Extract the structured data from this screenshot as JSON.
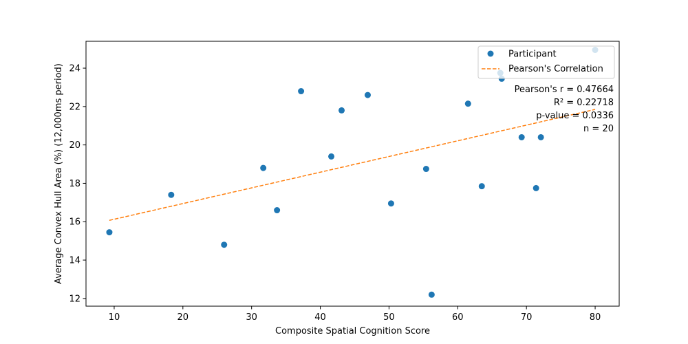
{
  "chart_data": {
    "type": "scatter",
    "title": "",
    "xlabel": "Composite Spatial Cognition Score",
    "ylabel": "Average Convex Hull Area (%) (12,000ms period)",
    "xlim": [
      5.9,
      83.5
    ],
    "ylim": [
      11.6,
      25.4
    ],
    "x_ticks": [
      10,
      20,
      30,
      40,
      50,
      60,
      70,
      80
    ],
    "y_ticks": [
      12,
      14,
      16,
      18,
      20,
      22,
      24
    ],
    "grid": false,
    "legend_position": "top-right",
    "series": [
      {
        "name": "Participant",
        "kind": "scatter",
        "color": "#1f77b4",
        "points": [
          [
            9.3,
            15.45
          ],
          [
            18.3,
            17.4
          ],
          [
            26.0,
            14.8
          ],
          [
            31.7,
            18.8
          ],
          [
            33.7,
            16.6
          ],
          [
            37.2,
            22.8
          ],
          [
            41.6,
            19.4
          ],
          [
            43.1,
            21.8
          ],
          [
            46.9,
            22.6
          ],
          [
            50.3,
            16.95
          ],
          [
            55.4,
            18.75
          ],
          [
            56.2,
            12.2
          ],
          [
            61.5,
            22.15
          ],
          [
            63.5,
            17.85
          ],
          [
            66.2,
            23.75
          ],
          [
            66.4,
            23.45
          ],
          [
            69.3,
            20.4
          ],
          [
            71.4,
            17.75
          ],
          [
            72.1,
            20.4
          ],
          [
            80.0,
            24.95
          ]
        ]
      },
      {
        "name": "Pearson's Correlation",
        "kind": "line",
        "style": "dashed",
        "color": "#ff7f0e",
        "points": [
          [
            9.3,
            16.07
          ],
          [
            80.0,
            21.85
          ]
        ]
      }
    ],
    "annotations": {
      "r": "Pearson's r = 0.47664",
      "r2": "R² = 0.22718",
      "p": "p-value = 0.0336",
      "n": "n = 20"
    }
  }
}
